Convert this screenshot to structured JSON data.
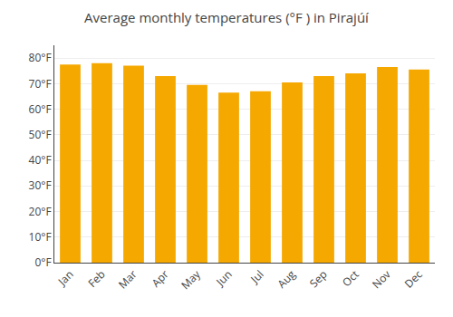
{
  "chart_data": {
    "type": "bar",
    "title": "Average monthly temperatures (°F ) in Pirajúí",
    "categories": [
      "Jan",
      "Feb",
      "Mar",
      "Apr",
      "May",
      "Jun",
      "Jul",
      "Aug",
      "Sep",
      "Oct",
      "Nov",
      "Dec"
    ],
    "values": [
      77.5,
      78.0,
      77.0,
      73.0,
      69.5,
      66.5,
      67.0,
      70.5,
      73.0,
      74.0,
      76.5,
      75.5
    ],
    "color": "#F5A800",
    "ylim": [
      0,
      85
    ],
    "yticks": [
      {
        "value": 0,
        "label": "0°F"
      },
      {
        "value": 10,
        "label": "10°F"
      },
      {
        "value": 20,
        "label": "20°F"
      },
      {
        "value": 30,
        "label": "30°F"
      },
      {
        "value": 40,
        "label": "40°F"
      },
      {
        "value": 50,
        "label": "50°F"
      },
      {
        "value": 60,
        "label": "60°F"
      },
      {
        "value": 70,
        "label": "70°F"
      },
      {
        "value": 80,
        "label": "80°F"
      }
    ],
    "grid": true
  }
}
